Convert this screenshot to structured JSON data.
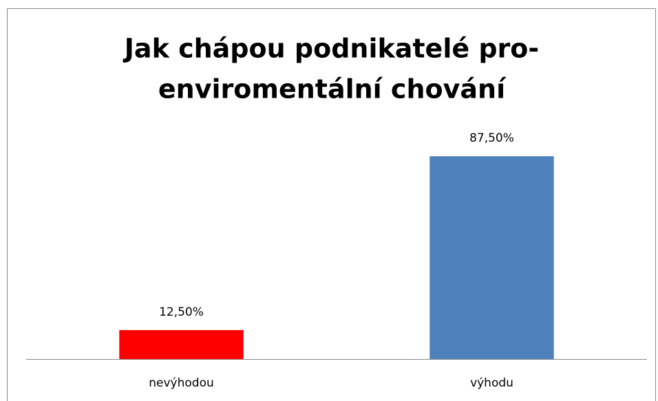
{
  "chart_data": {
    "type": "bar",
    "title": [
      "Jak chápou podnikatelé pro-",
      "enviromentální chování"
    ],
    "categories": [
      "nevýhodou",
      "výhodu"
    ],
    "values": [
      12.5,
      87.5
    ],
    "value_labels": [
      "12,50%",
      "87,50%"
    ],
    "colors": [
      "#ff0000",
      "#4f81bd"
    ],
    "ylim": [
      0,
      100
    ]
  }
}
